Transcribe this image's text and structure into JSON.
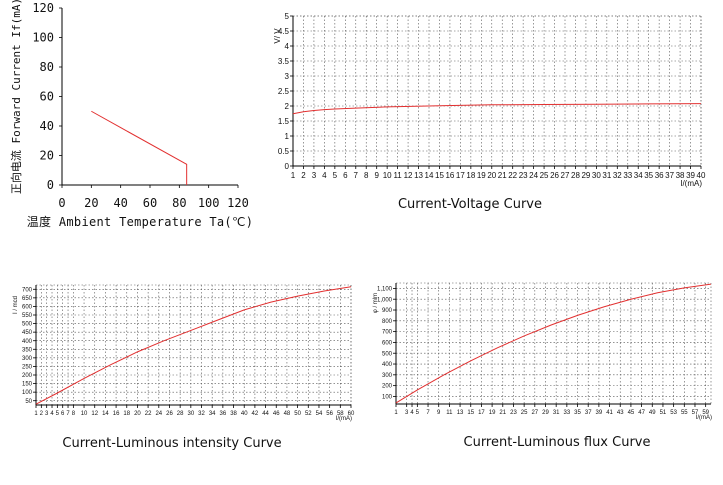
{
  "colors": {
    "curve": "#e23030",
    "axis": "#000000",
    "grid": "#555555",
    "text": "#111111"
  },
  "chart_data": [
    {
      "type": "line",
      "xlabel": "温度 Ambient Temperature Ta(℃)",
      "ylabel": "正向电流 Forward Current If(mA)",
      "xlim": [
        0,
        120
      ],
      "ylim": [
        0,
        120
      ],
      "x_ticks": [
        "0",
        "20",
        "40",
        "60",
        "80",
        "100",
        "120"
      ],
      "y_ticks": [
        "0",
        "20",
        "40",
        "60",
        "80",
        "100",
        "120"
      ],
      "grid": false,
      "series": [
        {
          "x": [
            20,
            85,
            85,
            85
          ],
          "y": [
            50,
            14,
            14,
            0
          ]
        }
      ]
    },
    {
      "type": "line",
      "title": "Current-Voltage Curve",
      "xlabel": "I/(mA)",
      "ylabel": "V/ V",
      "xlim": [
        1,
        40
      ],
      "ylim": [
        0,
        5
      ],
      "x_ticks": [
        "1",
        "2",
        "3",
        "4",
        "5",
        "6",
        "7",
        "8",
        "9",
        "10",
        "11",
        "12",
        "13",
        "14",
        "15",
        "16",
        "17",
        "18",
        "19",
        "20",
        "21",
        "22",
        "23",
        "24",
        "25",
        "26",
        "27",
        "28",
        "29",
        "30",
        "31",
        "32",
        "33",
        "34",
        "35",
        "36",
        "37",
        "38",
        "39",
        "40"
      ],
      "y_ticks": [
        "0",
        "0.5",
        "1",
        "1.5",
        "2",
        "2.5",
        "3",
        "3.5",
        "4",
        "4.5",
        "5"
      ],
      "grid": true,
      "series": [
        {
          "x": [
            1,
            2,
            3,
            4,
            5,
            7,
            10,
            15,
            20,
            25,
            30,
            35,
            40
          ],
          "y": [
            1.74,
            1.81,
            1.85,
            1.88,
            1.9,
            1.93,
            1.97,
            2.01,
            2.04,
            2.05,
            2.06,
            2.07,
            2.08
          ]
        }
      ]
    },
    {
      "type": "line",
      "title": "Current-Luminous intensity Curve",
      "xlabel": "I/(mA)",
      "ylabel": "I / mcd",
      "xlim": [
        1,
        60
      ],
      "ylim": [
        25,
        725
      ],
      "x_ticks": [
        "1",
        "2",
        "3",
        "4",
        "5",
        "6",
        "7",
        "8",
        "10",
        "12",
        "14",
        "16",
        "18",
        "20",
        "22",
        "24",
        "26",
        "28",
        "30",
        "32",
        "34",
        "36",
        "38",
        "40",
        "42",
        "44",
        "46",
        "48",
        "50",
        "52",
        "54",
        "56",
        "58",
        "60"
      ],
      "y_ticks": [
        "50",
        "100",
        "150",
        "200",
        "250",
        "300",
        "350",
        "400",
        "450",
        "500",
        "550",
        "600",
        "650",
        "700"
      ],
      "grid": true,
      "series": [
        {
          "x": [
            1,
            5,
            10,
            15,
            20,
            25,
            30,
            35,
            40,
            45,
            50,
            55,
            60
          ],
          "y": [
            30,
            95,
            180,
            260,
            335,
            400,
            460,
            520,
            580,
            625,
            660,
            690,
            715
          ]
        }
      ]
    },
    {
      "type": "line",
      "title": "Current-Luminous flux Curve",
      "xlabel": "I/(mA)",
      "ylabel": "φ / mlm",
      "xlim": [
        1,
        60
      ],
      "ylim": [
        30,
        1150
      ],
      "x_ticks": [
        "1",
        "3",
        "4",
        "5",
        "7",
        "9",
        "11",
        "13",
        "15",
        "17",
        "19",
        "21",
        "23",
        "25",
        "27",
        "29",
        "31",
        "33",
        "35",
        "37",
        "39",
        "41",
        "43",
        "45",
        "47",
        "49",
        "51",
        "53",
        "55",
        "57",
        "59"
      ],
      "y_ticks": [
        "100",
        "200",
        "300",
        "400",
        "500",
        "600",
        "700",
        "800",
        "900",
        "1,000",
        "1,100"
      ],
      "grid": true,
      "series": [
        {
          "x": [
            1,
            5,
            10,
            15,
            20,
            25,
            30,
            35,
            40,
            45,
            50,
            55,
            60
          ],
          "y": [
            40,
            160,
            300,
            430,
            550,
            660,
            760,
            850,
            930,
            1000,
            1060,
            1105,
            1140
          ]
        }
      ]
    }
  ]
}
